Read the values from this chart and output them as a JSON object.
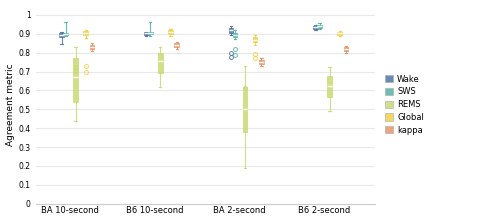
{
  "groups": [
    "BA 10-second",
    "B6 10-second",
    "BA 2-second",
    "B6 2-second"
  ],
  "series": [
    "Wake",
    "SWS",
    "REMS",
    "Global",
    "kappa"
  ],
  "colors": {
    "Wake": "#4a6fa5",
    "SWS": "#4db3a0",
    "REMS": "#c8d96f",
    "Global": "#f0d040",
    "kappa": "#e89060"
  },
  "boxplot_data": {
    "BA 10-second": {
      "Wake": {
        "q1": 0.885,
        "median": 0.895,
        "q3": 0.905,
        "whislo": 0.845,
        "whishi": 0.91,
        "fliers": []
      },
      "SWS": {
        "q1": 0.893,
        "median": 0.9,
        "q3": 0.905,
        "whislo": 0.89,
        "whishi": 0.965,
        "fliers": []
      },
      "REMS": {
        "q1": 0.54,
        "median": 0.67,
        "q3": 0.77,
        "whislo": 0.44,
        "whishi": 0.83,
        "fliers": [
          0.705,
          0.725
        ]
      },
      "Global": {
        "q1": 0.895,
        "median": 0.905,
        "q3": 0.915,
        "whislo": 0.88,
        "whishi": 0.92,
        "fliers": [
          0.7,
          0.73
        ]
      },
      "kappa": {
        "q1": 0.818,
        "median": 0.832,
        "q3": 0.843,
        "whislo": 0.808,
        "whishi": 0.852,
        "fliers": []
      }
    },
    "B6 10-second": {
      "Wake": {
        "q1": 0.895,
        "median": 0.905,
        "q3": 0.91,
        "whislo": 0.888,
        "whishi": 0.912,
        "fliers": []
      },
      "SWS": {
        "q1": 0.9,
        "median": 0.905,
        "q3": 0.91,
        "whislo": 0.888,
        "whishi": 0.963,
        "fliers": []
      },
      "REMS": {
        "q1": 0.695,
        "median": 0.755,
        "q3": 0.8,
        "whislo": 0.62,
        "whishi": 0.83,
        "fliers": []
      },
      "Global": {
        "q1": 0.9,
        "median": 0.91,
        "q3": 0.92,
        "whislo": 0.888,
        "whishi": 0.928,
        "fliers": []
      },
      "kappa": {
        "q1": 0.828,
        "median": 0.84,
        "q3": 0.85,
        "whislo": 0.818,
        "whishi": 0.858,
        "fliers": []
      }
    },
    "BA 2-second": {
      "Wake": {
        "q1": 0.905,
        "median": 0.92,
        "q3": 0.93,
        "whislo": 0.895,
        "whishi": 0.94,
        "fliers": [
          0.775,
          0.8
        ]
      },
      "SWS": {
        "q1": 0.885,
        "median": 0.895,
        "q3": 0.905,
        "whislo": 0.875,
        "whishi": 0.92,
        "fliers": [
          0.79,
          0.82
        ]
      },
      "REMS": {
        "q1": 0.38,
        "median": 0.5,
        "q3": 0.62,
        "whislo": 0.19,
        "whishi": 0.73,
        "fliers": [
          0.615
        ]
      },
      "Global": {
        "q1": 0.855,
        "median": 0.87,
        "q3": 0.882,
        "whislo": 0.84,
        "whishi": 0.892,
        "fliers": [
          0.77,
          0.795
        ]
      },
      "kappa": {
        "q1": 0.74,
        "median": 0.752,
        "q3": 0.762,
        "whislo": 0.73,
        "whishi": 0.772,
        "fliers": []
      }
    },
    "B6 2-second": {
      "Wake": {
        "q1": 0.928,
        "median": 0.936,
        "q3": 0.942,
        "whislo": 0.92,
        "whishi": 0.948,
        "fliers": []
      },
      "SWS": {
        "q1": 0.932,
        "median": 0.94,
        "q3": 0.945,
        "whislo": 0.924,
        "whishi": 0.958,
        "fliers": []
      },
      "REMS": {
        "q1": 0.565,
        "median": 0.625,
        "q3": 0.675,
        "whislo": 0.49,
        "whishi": 0.725,
        "fliers": []
      },
      "Global": {
        "q1": 0.895,
        "median": 0.905,
        "q3": 0.91,
        "whislo": 0.888,
        "whishi": 0.915,
        "fliers": []
      },
      "kappa": {
        "q1": 0.808,
        "median": 0.82,
        "q3": 0.83,
        "whislo": 0.798,
        "whishi": 0.838,
        "fliers": []
      }
    }
  },
  "series_offsets": {
    "Wake": -0.095,
    "SWS": -0.048,
    "REMS": 0.07,
    "Global": 0.19,
    "kappa": 0.265
  },
  "box_widths": {
    "Wake": 0.055,
    "SWS": 0.055,
    "REMS": 0.055,
    "Global": 0.055,
    "kappa": 0.055
  },
  "ylabel": "Agreement metric",
  "ylim": [
    0,
    1.05
  ],
  "yticks": [
    0,
    0.1,
    0.2,
    0.3,
    0.4,
    0.5,
    0.6,
    0.7,
    0.8,
    0.9,
    1
  ],
  "background_color": "#ffffff",
  "grid_color": "#e8e8e8",
  "figsize": [
    5.0,
    2.21
  ],
  "dpi": 100
}
